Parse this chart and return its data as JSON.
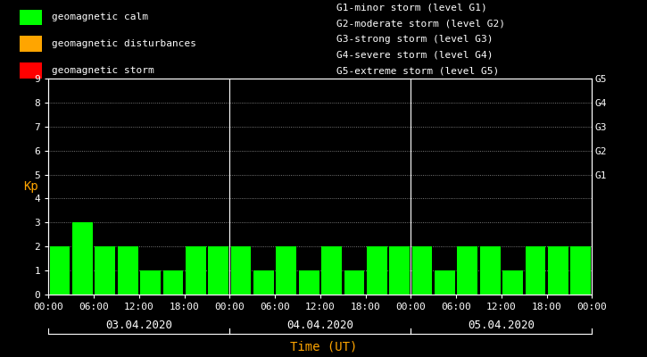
{
  "background_color": "#000000",
  "bar_color": "#00ff00",
  "bar_color_disturbance": "#ffa500",
  "bar_color_storm": "#ff0000",
  "text_color": "#ffffff",
  "orange_color": "#ffa500",
  "days": [
    "03.04.2020",
    "04.04.2020",
    "05.04.2020"
  ],
  "kp_values_day1": [
    2,
    3,
    2,
    2,
    1,
    1,
    2,
    2
  ],
  "kp_values_day2": [
    2,
    1,
    2,
    1,
    2,
    1,
    2,
    2
  ],
  "kp_values_day3": [
    2,
    1,
    2,
    2,
    1,
    2,
    2,
    2
  ],
  "ylim": [
    0,
    9
  ],
  "yticks": [
    0,
    1,
    2,
    3,
    4,
    5,
    6,
    7,
    8,
    9
  ],
  "ylabel": "Kp",
  "xlabel": "Time (UT)",
  "time_labels": [
    "00:00",
    "06:00",
    "12:00",
    "18:00",
    "00:00",
    "06:00",
    "12:00",
    "18:00",
    "00:00",
    "06:00",
    "12:00",
    "18:00",
    "00:00"
  ],
  "g_labels": [
    "G5",
    "G4",
    "G3",
    "G2",
    "G1"
  ],
  "g_levels": [
    9,
    8,
    7,
    6,
    5
  ],
  "legend_items": [
    {
      "label": "geomagnetic calm",
      "color": "#00ff00"
    },
    {
      "label": "geomagnetic disturbances",
      "color": "#ffa500"
    },
    {
      "label": "geomagnetic storm",
      "color": "#ff0000"
    }
  ],
  "right_text": [
    "G1-minor storm (level G1)",
    "G2-moderate storm (level G2)",
    "G3-strong storm (level G3)",
    "G4-severe storm (level G4)",
    "G5-extreme storm (level G5)"
  ],
  "font_size": 8,
  "bar_kp_thresholds": [
    4,
    5
  ]
}
